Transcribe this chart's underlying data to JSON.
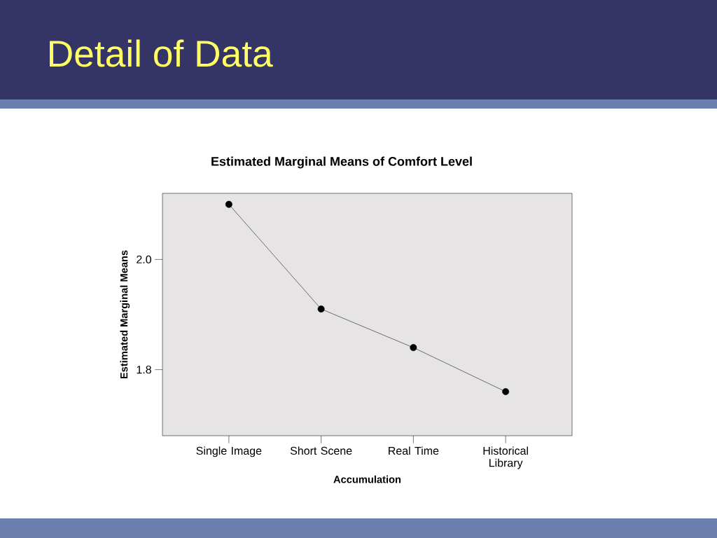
{
  "chart_data": {
    "type": "line",
    "title": "Detail of Data",
    "subtitle": "Estimated Marginal Means of Comfort Level",
    "xlabel": "Accumulation",
    "ylabel": "Estimated Marginal Means",
    "categories": [
      "Single Image",
      "Short Scene",
      "Real Time",
      "Historical Library"
    ],
    "series": [
      {
        "color": "#000000",
        "values": [
          2.1,
          1.91,
          1.84,
          1.76
        ]
      }
    ],
    "ylim": [
      1.68,
      2.12
    ],
    "yticks": [
      {
        "value": 1.8,
        "label": "1.8"
      },
      {
        "value": 2.0,
        "label": "2.0"
      }
    ],
    "marker": "circle",
    "line_style": "solid",
    "grid": false
  }
}
